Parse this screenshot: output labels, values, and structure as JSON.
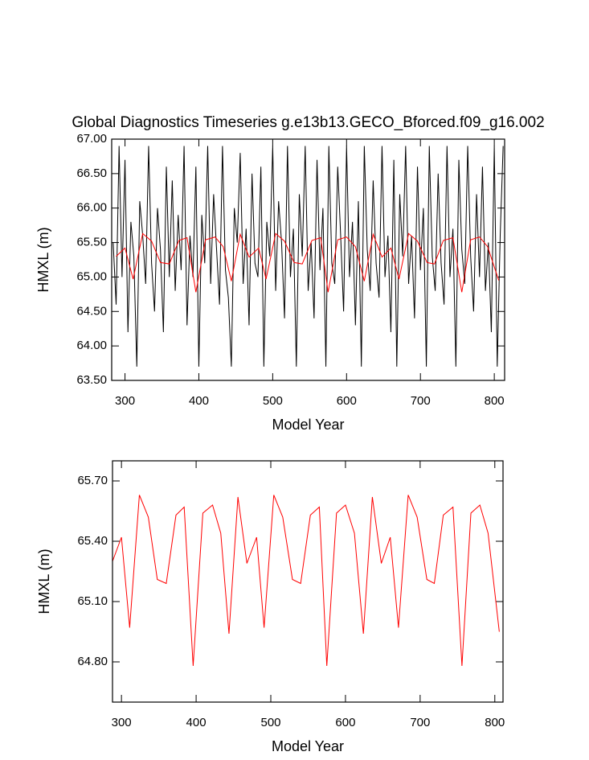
{
  "chart_data": [
    {
      "type": "line",
      "title": "Global Diagnostics Timeseries g.e13b13.GECO_Bforced.f09_g16.002",
      "xlabel": "Model Year",
      "ylabel": "HMXL (m)",
      "xlim": [
        282,
        814
      ],
      "ylim": [
        63.5,
        67
      ],
      "xticks": [
        300,
        400,
        500,
        600,
        700,
        800
      ],
      "yticks": [
        {
          "value": 63.5,
          "label": "63.50"
        },
        {
          "value": 64,
          "label": "64.00"
        },
        {
          "value": 64.5,
          "label": "64.50"
        },
        {
          "value": 65,
          "label": "65.00"
        },
        {
          "value": 65.5,
          "label": "65.50"
        },
        {
          "value": 66,
          "label": "66.00"
        },
        {
          "value": 66.5,
          "label": "66.50"
        },
        {
          "value": 67,
          "label": "67.00"
        }
      ],
      "series": [
        {
          "color": "#000000",
          "x": [
            284,
            288,
            292,
            296,
            300,
            304,
            308,
            312,
            316,
            320,
            324,
            328,
            332,
            336,
            340,
            344,
            348,
            352,
            356,
            360,
            364,
            368,
            372,
            376,
            380,
            384,
            388,
            392,
            396,
            400,
            404,
            408,
            412,
            416,
            420,
            424,
            428,
            432,
            436,
            440,
            444,
            448,
            452,
            456,
            460,
            464,
            468,
            472,
            476,
            480,
            484,
            488,
            492,
            496,
            500,
            504,
            508,
            512,
            516,
            520,
            524,
            528,
            532,
            536,
            540,
            544,
            548,
            552,
            556,
            560,
            564,
            568,
            572,
            576,
            580,
            584,
            588,
            592,
            596,
            600,
            604,
            608,
            612,
            616,
            620,
            624,
            628,
            632,
            636,
            640,
            644,
            648,
            652,
            656,
            660,
            664,
            668,
            672,
            676,
            680,
            684,
            688,
            692,
            696,
            700,
            704,
            708,
            712,
            716,
            720,
            724,
            728,
            732,
            736,
            740,
            744,
            748,
            752,
            756,
            760,
            764,
            768,
            772,
            776,
            780,
            784,
            788,
            792,
            796,
            800,
            804,
            808,
            812
          ],
          "values": [
            65.5,
            64.6,
            66.9,
            65.0,
            66.7,
            64.2,
            65.8,
            65.3,
            63.7,
            66.1,
            65.6,
            64.9,
            66.9,
            65.2,
            64.5,
            66.0,
            65.4,
            64.2,
            66.6,
            65.0,
            66.4,
            64.8,
            65.9,
            65.1,
            66.9,
            64.3,
            65.6,
            65.0,
            66.6,
            63.7,
            65.9,
            65.2,
            66.9,
            64.9,
            66.2,
            65.4,
            64.6,
            66.9,
            65.1,
            64.7,
            63.7,
            66.0,
            65.5,
            66.8,
            64.9,
            65.7,
            64.3,
            66.5,
            65.2,
            65.0,
            66.6,
            63.7,
            65.8,
            65.3,
            66.9,
            64.8,
            66.1,
            65.5,
            64.4,
            66.9,
            65.0,
            65.7,
            63.7,
            66.2,
            65.3,
            66.9,
            64.8,
            65.5,
            64.4,
            66.7,
            65.1,
            66.0,
            63.7,
            66.9,
            65.2,
            64.9,
            66.6,
            65.6,
            64.5,
            66.9,
            65.0,
            65.8,
            64.3,
            66.1,
            63.7,
            66.9,
            65.4,
            64.8,
            66.4,
            65.2,
            64.7,
            66.9,
            65.0,
            65.6,
            64.2,
            66.7,
            63.7,
            66.2,
            65.3,
            66.9,
            64.9,
            65.6,
            64.4,
            66.6,
            65.1,
            66.0,
            63.7,
            66.9,
            65.3,
            64.8,
            66.5,
            65.2,
            64.6,
            66.9,
            65.0,
            65.7,
            63.7,
            66.7,
            65.4,
            64.9,
            66.9,
            65.3,
            64.5,
            66.2,
            65.0,
            66.6,
            64.8,
            65.5,
            64.2,
            66.9,
            63.7,
            65.6,
            66.9
          ]
        },
        {
          "color": "#ff0000",
          "x": [
            288,
            300,
            311,
            324,
            336,
            348,
            360,
            373,
            384,
            396,
            409,
            422,
            433,
            444,
            456,
            468,
            481,
            491,
            504,
            516,
            529,
            540,
            553,
            565,
            575,
            588,
            600,
            612,
            624,
            636,
            648,
            660,
            671,
            684,
            696,
            709,
            719,
            731,
            744,
            756,
            768,
            780,
            791,
            806
          ],
          "values": [
            65.3,
            65.42,
            64.97,
            65.63,
            65.52,
            65.21,
            65.19,
            65.53,
            65.57,
            64.78,
            65.54,
            65.58,
            65.44,
            64.94,
            65.62,
            65.29,
            65.42,
            64.97,
            65.63,
            65.52,
            65.21,
            65.19,
            65.53,
            65.57,
            64.78,
            65.54,
            65.58,
            65.44,
            64.94,
            65.62,
            65.29,
            65.42,
            64.97,
            65.63,
            65.52,
            65.21,
            65.19,
            65.53,
            65.57,
            64.78,
            65.54,
            65.58,
            65.44,
            64.95
          ]
        }
      ]
    },
    {
      "type": "line",
      "xlabel": "Model Year",
      "ylabel": "HMXL (m)",
      "xlim": [
        288,
        811
      ],
      "ylim": [
        64.6,
        65.8
      ],
      "xticks": [
        300,
        400,
        500,
        600,
        700,
        800
      ],
      "yticks": [
        {
          "value": 64.8,
          "label": "64.80"
        },
        {
          "value": 65.1,
          "label": "65.10"
        },
        {
          "value": 65.4,
          "label": "65.40"
        },
        {
          "value": 65.7,
          "label": "65.70"
        }
      ],
      "series": [
        {
          "color": "#ff0000",
          "x": [
            288,
            300,
            311,
            324,
            336,
            348,
            360,
            373,
            384,
            396,
            409,
            422,
            433,
            444,
            456,
            468,
            481,
            491,
            504,
            516,
            529,
            540,
            553,
            565,
            575,
            588,
            600,
            612,
            624,
            636,
            648,
            660,
            671,
            684,
            696,
            709,
            719,
            731,
            744,
            756,
            768,
            780,
            791,
            806
          ],
          "values": [
            65.3,
            65.42,
            64.97,
            65.63,
            65.52,
            65.21,
            65.19,
            65.53,
            65.57,
            64.78,
            65.54,
            65.58,
            65.44,
            64.94,
            65.62,
            65.29,
            65.42,
            64.97,
            65.63,
            65.52,
            65.21,
            65.19,
            65.53,
            65.57,
            64.78,
            65.54,
            65.58,
            65.44,
            64.94,
            65.62,
            65.29,
            65.42,
            64.97,
            65.63,
            65.52,
            65.21,
            65.19,
            65.53,
            65.57,
            64.78,
            65.54,
            65.58,
            65.44,
            64.95
          ]
        }
      ]
    }
  ]
}
